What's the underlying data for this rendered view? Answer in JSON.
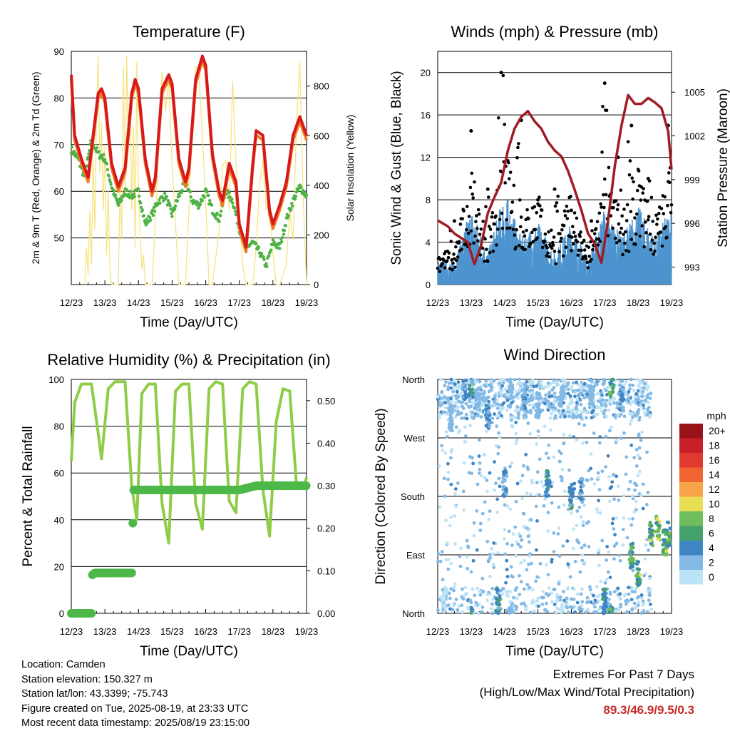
{
  "time_axis": {
    "ticks": [
      "12/23",
      "13/23",
      "14/23",
      "15/23",
      "16/23",
      "17/23",
      "18/23",
      "19/23"
    ],
    "label": "Time (Day/UTC)"
  },
  "colors": {
    "temp_2m": "#d7191c",
    "temp_9m": "#f07b24",
    "dewpoint": "#4fb246",
    "solar": "#f6e27a",
    "wind": "#4d94cf",
    "gust": "#000000",
    "pressure": "#a01c24",
    "rh": "#8fcc47",
    "precip": "#4db849",
    "extremes_values": "#c62828"
  },
  "colorbar": {
    "unit": "mph",
    "labels": [
      "20+",
      "18",
      "16",
      "14",
      "12",
      "10",
      "8",
      "6",
      "4",
      "2",
      "0"
    ],
    "colors": [
      "#99131b",
      "#c72028",
      "#e03a30",
      "#ef6531",
      "#f8a24a",
      "#e9df55",
      "#6fbe5d",
      "#45a26d",
      "#3f85c4",
      "#83b9e4",
      "#bde3f6"
    ]
  },
  "info": {
    "location": "Location: Camden",
    "elevation": "Station elevation: 150.327 m",
    "latlon": "Station lat/lon: 43.3399; -75.743",
    "created": "Figure created on Tue, 2025-08-19, at 23:33 UTC",
    "recent": "Most recent data timestamp: 2025/08/19 23:15:00"
  },
  "extremes": {
    "title": "Extremes For Past 7 Days",
    "subtitle": "(High/Low/Max Wind/Total Precipitation)",
    "values": "89.3/46.9/9.5/0.3"
  },
  "chart_data": [
    {
      "type": "line",
      "title": "Temperature (F)",
      "xlabel": "Time (Day/UTC)",
      "ylabel": "2m & 9m T (Red, Orange) & 2m Td (Green)",
      "ylabel_right": "Solar Insolation (Yellow)",
      "ylim": [
        40,
        90
      ],
      "yticks": [
        50,
        60,
        70,
        80,
        90
      ],
      "ylim_right": [
        0,
        940
      ],
      "yticks_right": [
        0,
        200,
        400,
        600,
        800
      ],
      "xlim_days": [
        0,
        7
      ],
      "series": [
        {
          "name": "2m T",
          "x": [
            0,
            0.1,
            0.3,
            0.5,
            0.6,
            0.8,
            0.9,
            1.0,
            1.2,
            1.4,
            1.6,
            1.8,
            1.9,
            2.0,
            2.2,
            2.4,
            2.5,
            2.7,
            2.9,
            3.0,
            3.2,
            3.4,
            3.5,
            3.7,
            3.9,
            4.0,
            4.2,
            4.4,
            4.5,
            4.7,
            4.9,
            5.0,
            5.2,
            5.4,
            5.5,
            5.7,
            5.9,
            6.0,
            6.2,
            6.4,
            6.6,
            6.8,
            7.0
          ],
          "y": [
            85,
            72,
            67,
            63,
            69,
            81,
            82,
            80,
            66,
            61,
            65,
            81,
            84,
            82,
            67,
            60,
            63,
            82,
            85,
            83,
            67,
            62,
            65,
            84,
            89,
            87,
            68,
            60,
            58,
            66,
            62,
            53,
            48,
            66,
            73,
            72,
            56,
            53,
            57,
            62,
            72,
            76,
            72
          ]
        },
        {
          "name": "9m T",
          "x": [
            0,
            0.1,
            0.3,
            0.5,
            0.6,
            0.8,
            0.9,
            1.0,
            1.2,
            1.4,
            1.6,
            1.8,
            1.9,
            2.0,
            2.2,
            2.4,
            2.5,
            2.7,
            2.9,
            3.0,
            3.2,
            3.4,
            3.5,
            3.7,
            3.9,
            4.0,
            4.2,
            4.4,
            4.5,
            4.7,
            4.9,
            5.0,
            5.2,
            5.4,
            5.5,
            5.7,
            5.9,
            6.0,
            6.2,
            6.4,
            6.6,
            6.8,
            7.0
          ],
          "y": [
            84,
            71,
            66,
            62,
            68,
            80,
            81,
            79,
            65,
            60,
            64,
            80,
            83,
            81,
            66,
            59,
            62,
            81,
            84,
            82,
            66,
            61,
            64,
            83,
            88,
            86,
            67,
            59,
            57,
            65,
            61,
            52,
            47,
            65,
            72,
            71,
            55,
            52,
            56,
            61,
            71,
            75,
            71
          ]
        },
        {
          "name": "2m Td",
          "x": [
            0,
            0.2,
            0.4,
            0.6,
            0.8,
            1.0,
            1.2,
            1.4,
            1.6,
            1.8,
            2.0,
            2.2,
            2.4,
            2.6,
            2.8,
            3.0,
            3.2,
            3.4,
            3.6,
            3.8,
            4.0,
            4.2,
            4.4,
            4.6,
            4.8,
            5.0,
            5.2,
            5.4,
            5.6,
            5.8,
            6.0,
            6.2,
            6.4,
            6.6,
            6.8,
            7.0
          ],
          "y": [
            69,
            67,
            63,
            71,
            68,
            67,
            61,
            57,
            60,
            59,
            60,
            53,
            55,
            58,
            59,
            55,
            59,
            62,
            58,
            57,
            60,
            56,
            54,
            60,
            58,
            52,
            48,
            49,
            47,
            44,
            49,
            48,
            54,
            58,
            61,
            59
          ]
        },
        {
          "name": "Solar Insolation",
          "x": [
            0.4,
            0.45,
            0.5,
            0.55,
            0.6,
            0.65,
            0.7,
            0.75,
            0.8,
            0.85,
            0.9,
            0.95,
            1.0,
            1.05,
            1.1,
            1.15,
            1.2,
            1.4,
            1.45,
            1.5,
            1.55,
            1.6,
            1.65,
            1.7,
            1.75,
            1.8,
            1.85,
            1.9,
            1.95,
            2.0,
            2.05,
            2.1,
            2.15,
            2.2,
            2.4,
            2.5,
            2.6,
            2.7,
            2.8,
            2.9,
            3.0,
            3.1,
            3.2,
            3.4,
            3.5,
            3.6,
            3.7,
            3.8,
            3.9,
            4.0,
            4.1,
            4.2,
            4.4,
            4.5,
            4.6,
            4.7,
            4.8,
            4.9,
            5.0,
            5.1,
            5.2,
            5.4,
            5.5,
            5.6,
            5.7,
            5.8,
            5.9,
            6.0,
            6.1,
            6.2,
            6.4,
            6.5,
            6.6,
            6.7,
            6.8,
            6.9,
            7.0
          ],
          "y": [
            0,
            150,
            40,
            300,
            80,
            500,
            220,
            700,
            920,
            450,
            650,
            300,
            560,
            120,
            380,
            60,
            0,
            0,
            420,
            180,
            880,
            350,
            920,
            560,
            780,
            300,
            640,
            150,
            900,
            400,
            200,
            60,
            120,
            0,
            0,
            250,
            550,
            860,
            700,
            820,
            480,
            250,
            0,
            0,
            300,
            640,
            880,
            850,
            600,
            330,
            0,
            0,
            220,
            480,
            500,
            300,
            820,
            500,
            260,
            80,
            0,
            0,
            150,
            400,
            500,
            300,
            350,
            120,
            0,
            0,
            80,
            300,
            180,
            650,
            900,
            350,
            0
          ]
        }
      ]
    },
    {
      "type": "scatter",
      "title": "Winds (mph) & Pressure (mb)",
      "xlabel": "Time (Day/UTC)",
      "ylabel": "Sonic Wind & Gust (Blue, Black)",
      "ylabel_right": "Station Pressure (Maroon)",
      "ylim": [
        0,
        22
      ],
      "yticks": [
        0,
        4,
        8,
        12,
        16,
        20
      ],
      "ylim_right": [
        991.8,
        1007.8
      ],
      "yticks_right": [
        993,
        996,
        999,
        1002,
        1005
      ],
      "series": [
        {
          "name": "Pressure",
          "x": [
            0,
            0.3,
            0.5,
            0.7,
            0.9,
            1.1,
            1.3,
            1.5,
            1.7,
            1.9,
            2.1,
            2.3,
            2.5,
            2.7,
            2.9,
            3.1,
            3.3,
            3.5,
            3.7,
            3.9,
            4.1,
            4.3,
            4.5,
            4.7,
            4.9,
            5.1,
            5.3,
            5.5,
            5.7,
            5.9,
            6.1,
            6.3,
            6.5,
            6.7,
            6.9,
            7.0
          ],
          "y": [
            996.2,
            995.8,
            995.3,
            995.0,
            994.7,
            993.2,
            994.5,
            996.7,
            997.8,
            998.8,
            1001.0,
            1002.5,
            1003.3,
            1003.7,
            1003.0,
            1002.5,
            1001.6,
            1001.0,
            1000.6,
            999.6,
            998.3,
            996.9,
            995.3,
            994.6,
            993.3,
            996.2,
            999.9,
            1002.7,
            1004.8,
            1004.2,
            1004.2,
            1004.6,
            1004.3,
            1003.9,
            1002.3,
            999.7
          ]
        },
        {
          "name": "Gust (daily max)",
          "x": [
            0.5,
            1.0,
            1.5,
            1.9,
            2.5,
            3.0,
            3.5,
            4.0,
            4.6,
            5.0,
            5.4,
            5.8,
            6.3,
            6.9
          ],
          "y": [
            6,
            14.5,
            9,
            20,
            15.5,
            8,
            9,
            7,
            6,
            19,
            12,
            15,
            10,
            15
          ]
        },
        {
          "name": "Sonic Wind (daily typical)",
          "x": [
            0.5,
            1.0,
            1.5,
            2.0,
            2.5,
            3.0,
            3.5,
            4.0,
            4.5,
            5.0,
            5.5,
            6.0,
            6.5,
            7.0
          ],
          "y": [
            1.5,
            5,
            2,
            6,
            3,
            4,
            2,
            4,
            1.5,
            5,
            3,
            5,
            3,
            5
          ]
        }
      ]
    },
    {
      "type": "line",
      "title": "Relative Humidity (%) & Precipitation (in)",
      "xlabel": "Time (Day/UTC)",
      "ylabel": "Percent & Total Rainfall",
      "ylim": [
        0,
        100
      ],
      "yticks": [
        0,
        20,
        40,
        60,
        80,
        100
      ],
      "ylim_right": [
        0,
        0.55
      ],
      "yticks_right": [
        0.0,
        0.1,
        0.2,
        0.3,
        0.4,
        0.5
      ],
      "series": [
        {
          "name": "Relative Humidity",
          "x": [
            0,
            0.1,
            0.3,
            0.6,
            0.8,
            0.9,
            1.1,
            1.3,
            1.6,
            1.8,
            1.95,
            2.1,
            2.3,
            2.5,
            2.7,
            2.9,
            3.1,
            3.3,
            3.5,
            3.7,
            3.9,
            4.1,
            4.3,
            4.5,
            4.7,
            4.9,
            5.1,
            5.3,
            5.5,
            5.7,
            5.9,
            6.1,
            6.3,
            6.5,
            6.7,
            6.9,
            7.0
          ],
          "y": [
            65,
            90,
            98,
            98,
            77,
            66,
            96,
            99,
            99,
            54,
            40,
            94,
            98,
            98,
            47,
            30,
            95,
            98,
            98,
            47,
            36,
            96,
            99,
            98,
            48,
            43,
            96,
            99,
            98,
            53,
            33,
            82,
            96,
            95,
            55,
            54,
            58
          ]
        },
        {
          "name": "Total Precipitation",
          "x": [
            0,
            0.6,
            0.62,
            0.7,
            1.0,
            1.5,
            1.8,
            1.85,
            2.0,
            3.0,
            4.0,
            5.0,
            5.5,
            6.0,
            7.0
          ],
          "y": [
            0,
            0,
            0.09,
            0.095,
            0.095,
            0.095,
            0.095,
            0.29,
            0.29,
            0.29,
            0.29,
            0.29,
            0.3,
            0.3,
            0.3
          ]
        }
      ]
    },
    {
      "type": "scatter",
      "title": "Wind Direction",
      "xlabel": "Time (Day/UTC)",
      "ylabel": "Direction (Colored By Speed)",
      "yticks": [
        "North",
        "East",
        "South",
        "West",
        "North"
      ],
      "ylim": [
        0,
        360
      ],
      "series": [
        {
          "name": "Direction",
          "x": [
            0.2,
            0.4,
            0.8,
            1.0,
            1.2,
            1.5,
            1.8,
            2.0,
            2.2,
            2.6,
            3.0,
            3.3,
            3.7,
            4.0,
            4.3,
            4.6,
            5.0,
            5.2,
            5.5,
            5.8,
            6.0,
            6.4,
            6.6,
            6.8,
            6.9
          ],
          "y": [
            20,
            300,
            340,
            350,
            330,
            300,
            20,
            200,
            350,
            330,
            320,
            200,
            330,
            180,
            190,
            340,
            20,
            350,
            330,
            90,
            60,
            120,
            130,
            110,
            120
          ],
          "speed": [
            1,
            2,
            3,
            4,
            2,
            3,
            4,
            3,
            2,
            3,
            2,
            4,
            2,
            4,
            3,
            2,
            5,
            6,
            3,
            6,
            7,
            7,
            8,
            7,
            6
          ]
        }
      ]
    }
  ]
}
